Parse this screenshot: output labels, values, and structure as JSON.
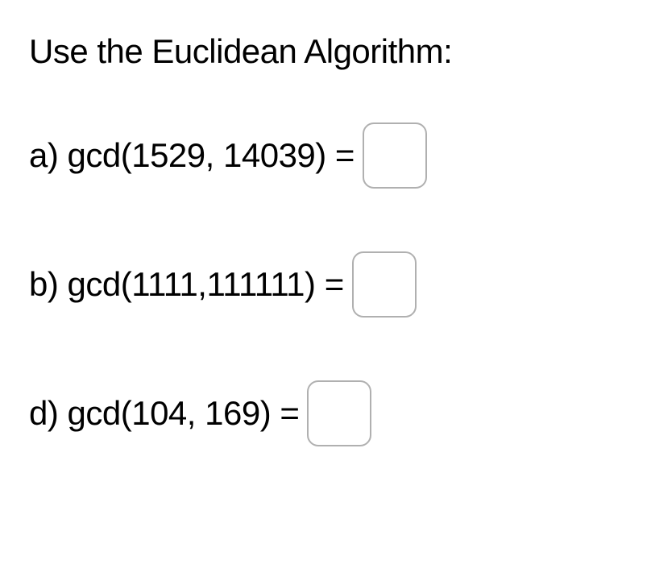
{
  "heading": "Use the Euclidean Algorithm:",
  "problems": [
    {
      "label": "a) gcd(1529, 14039) =",
      "value": ""
    },
    {
      "label": "b) gcd(1111,111111) =",
      "value": ""
    },
    {
      "label": "d) gcd(104, 169) =",
      "value": ""
    }
  ],
  "colors": {
    "background": "#ffffff",
    "text": "#000000",
    "input_border": "#b0b0b0"
  },
  "typography": {
    "heading_fontsize": 42,
    "problem_fontsize": 42,
    "font_family": "Lucida Sans Unicode"
  },
  "input_box": {
    "width": 80,
    "height": 82,
    "border_radius": 14,
    "border_width": 2
  }
}
